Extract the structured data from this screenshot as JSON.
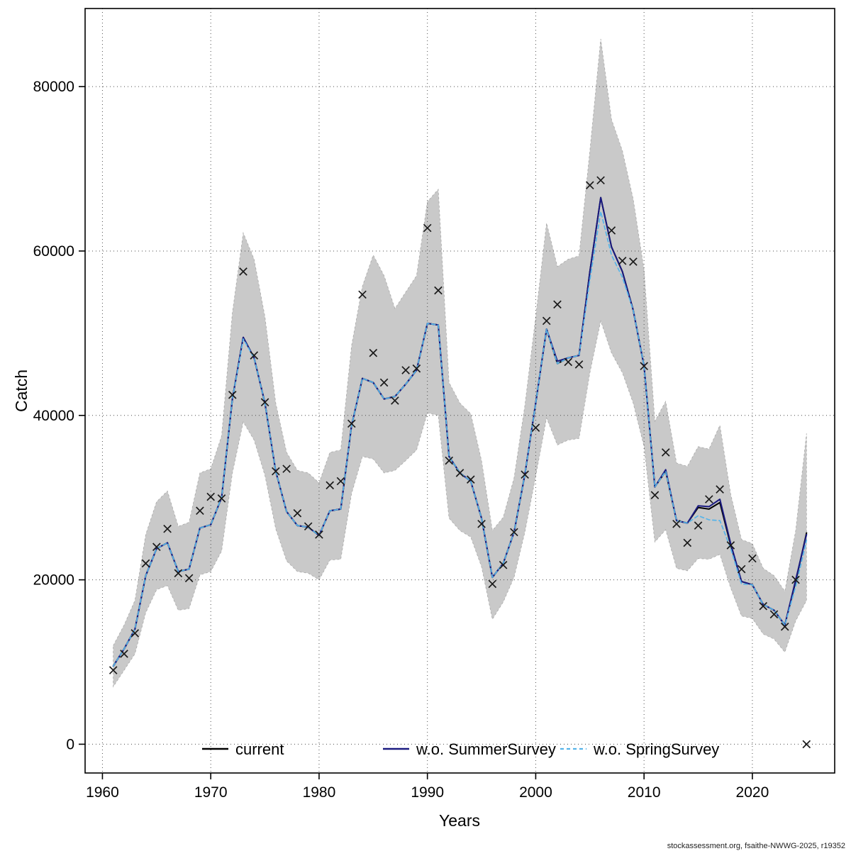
{
  "footer": {
    "credit": "stockassessment.org, fsaithe-NWWG-2025, r19352"
  },
  "chart_data": {
    "type": "line",
    "title": "",
    "xlabel": "Years",
    "ylabel": "Catch",
    "grid": true,
    "legend_position": "bottom-inside",
    "x_ticks": [
      1960,
      1970,
      1980,
      1990,
      2000,
      2010,
      2020
    ],
    "y_ticks": [
      0,
      20000,
      40000,
      60000,
      80000
    ],
    "xlim": [
      1958.4,
      2027.6
    ],
    "ylim": [
      -3500,
      89500
    ],
    "band_color": "#c9c9c9",
    "band_edge_color": "#a8a8a8",
    "marker_color": "#1a1a1a",
    "marker_shape": "x-cross",
    "years": [
      1961,
      1962,
      1963,
      1964,
      1965,
      1966,
      1967,
      1968,
      1969,
      1970,
      1971,
      1972,
      1973,
      1974,
      1975,
      1976,
      1977,
      1978,
      1979,
      1980,
      1981,
      1982,
      1983,
      1984,
      1985,
      1986,
      1987,
      1988,
      1989,
      1990,
      1991,
      1992,
      1993,
      1994,
      1995,
      1996,
      1997,
      1998,
      1999,
      2000,
      2001,
      2002,
      2003,
      2004,
      2005,
      2006,
      2007,
      2008,
      2009,
      2010,
      2011,
      2012,
      2013,
      2014,
      2015,
      2016,
      2017,
      2018,
      2019,
      2020,
      2021,
      2022,
      2023,
      2024,
      2025
    ],
    "observed_catch": [
      9000,
      11000,
      13500,
      22000,
      24000,
      26200,
      20800,
      20200,
      28400,
      30100,
      29900,
      42500,
      57500,
      47300,
      41600,
      33200,
      33500,
      28100,
      26500,
      25500,
      31500,
      32000,
      39000,
      54700,
      47600,
      44000,
      41800,
      45500,
      45700,
      62800,
      55200,
      34500,
      33000,
      32200,
      26800,
      19500,
      21800,
      25800,
      32800,
      38500,
      51500,
      53500,
      46500,
      46200,
      68000,
      68600,
      62500,
      58800,
      58700,
      46000,
      30300,
      35500,
      26800,
      24500,
      26600,
      29800,
      31000,
      24200,
      21300,
      22600,
      16800,
      15800,
      14300,
      20000,
      0
    ],
    "series": [
      {
        "name": "current",
        "color": "#000000",
        "dash": "",
        "width": 2,
        "values": [
          9500,
          11600,
          14000,
          20500,
          23800,
          24500,
          21000,
          21300,
          26300,
          26700,
          30000,
          42000,
          49500,
          47000,
          41500,
          33200,
          28300,
          26600,
          26400,
          25400,
          28400,
          28600,
          38800,
          44500,
          44000,
          42000,
          42300,
          43800,
          45500,
          51200,
          51000,
          35000,
          33000,
          32000,
          27500,
          20300,
          22000,
          25800,
          32800,
          41500,
          50500,
          46300,
          47000,
          47300,
          57500,
          66500,
          60500,
          57500,
          52800,
          46000,
          31300,
          33200,
          27200,
          26900,
          28800,
          28600,
          29400,
          24200,
          19800,
          19400,
          17000,
          16300,
          14500,
          19800,
          25700
        ]
      },
      {
        "name": "w.o. SummerSurvey",
        "color": "#1a1a80",
        "dash": "",
        "width": 2,
        "values": [
          9500,
          11600,
          14000,
          20500,
          23800,
          24500,
          21000,
          21300,
          26300,
          26700,
          30000,
          42000,
          49500,
          47000,
          41500,
          33200,
          28300,
          26600,
          26400,
          25400,
          28400,
          28600,
          38800,
          44500,
          44000,
          42000,
          42300,
          43800,
          45500,
          51200,
          51000,
          35000,
          33000,
          32000,
          27500,
          20300,
          22000,
          25800,
          32800,
          41500,
          50500,
          46600,
          47000,
          47300,
          57500,
          66500,
          60500,
          57500,
          52800,
          46000,
          31300,
          33400,
          27200,
          26900,
          29000,
          28900,
          29800,
          24400,
          19800,
          19400,
          17000,
          16300,
          14500,
          20000,
          25500
        ]
      },
      {
        "name": "w.o. SpringSurvey",
        "color": "#56b4e9",
        "dash": "5 4",
        "width": 1.7,
        "values": [
          9500,
          11600,
          14000,
          20500,
          23800,
          24500,
          21000,
          21300,
          26300,
          26700,
          30000,
          42000,
          49300,
          47000,
          41500,
          33200,
          28300,
          26600,
          26400,
          25400,
          28400,
          28600,
          38800,
          44500,
          44000,
          42000,
          42300,
          43800,
          45500,
          51200,
          51000,
          35000,
          33000,
          32000,
          27500,
          20300,
          22000,
          25800,
          32800,
          41500,
          50500,
          46300,
          47000,
          47300,
          56500,
          64800,
          59500,
          56800,
          52800,
          46000,
          31300,
          33200,
          27200,
          26900,
          27800,
          27300,
          27200,
          23800,
          19500,
          19400,
          17000,
          16300,
          14500,
          19200,
          24800
        ]
      }
    ],
    "band": {
      "lo": [
        7000,
        9000,
        11000,
        16000,
        18800,
        19300,
        16300,
        16500,
        20600,
        21000,
        23500,
        33000,
        39200,
        37000,
        32700,
        26200,
        22300,
        21000,
        20800,
        20000,
        22400,
        22500,
        30500,
        35000,
        34700,
        33000,
        33300,
        34500,
        35800,
        40300,
        40000,
        27500,
        26000,
        25200,
        21600,
        15200,
        17300,
        20300,
        25800,
        32600,
        39700,
        36400,
        37000,
        37200,
        45200,
        51500,
        47600,
        45200,
        41500,
        36200,
        24600,
        26100,
        21400,
        21100,
        22600,
        22500,
        23100,
        19000,
        15600,
        15300,
        13400,
        12800,
        11200,
        15000,
        17500
      ],
      "hi": [
        12000,
        14500,
        17500,
        25500,
        29500,
        30800,
        26500,
        27000,
        33000,
        33500,
        37500,
        52500,
        62200,
        59000,
        52000,
        41500,
        35500,
        33300,
        33000,
        31800,
        35500,
        35800,
        48500,
        55700,
        59500,
        57000,
        53000,
        55000,
        57000,
        66000,
        67500,
        44000,
        41500,
        40200,
        34500,
        26000,
        27600,
        32400,
        41200,
        52000,
        63400,
        58100,
        59000,
        59400,
        72200,
        85800,
        76000,
        72200,
        66300,
        57700,
        39300,
        41700,
        34200,
        33800,
        36200,
        35900,
        38800,
        30400,
        24900,
        24400,
        21400,
        20500,
        18600,
        26000,
        37800
      ]
    }
  }
}
